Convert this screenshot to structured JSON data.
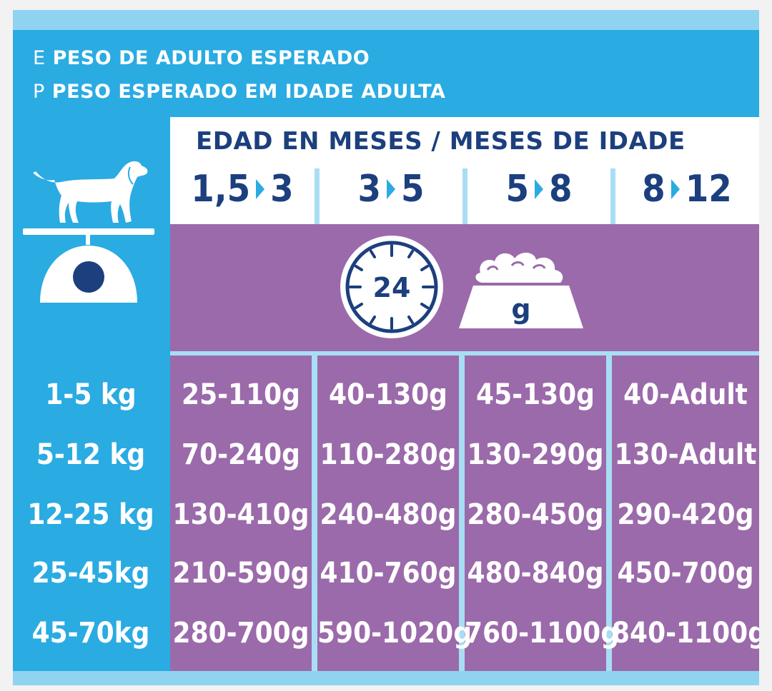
{
  "legend": {
    "e_key": "E",
    "e_text": "PESO DE ADULTO ESPERADO",
    "p_key": "P",
    "p_text": "PESO ESPERADO EM IDADE ADULTA"
  },
  "age_header": {
    "title": "EDAD EN MESES / MESES DE IDADE",
    "ranges": [
      {
        "from": "1,5",
        "to": "3"
      },
      {
        "from": "3",
        "to": "5"
      },
      {
        "from": "5",
        "to": "8"
      },
      {
        "from": "8",
        "to": "12"
      }
    ]
  },
  "icons": {
    "clock_label": "24",
    "bowl_label": "g",
    "dog_icon": "dog-on-scale-icon"
  },
  "colors": {
    "blue": "#2aabe2",
    "light_blue": "#a8def4",
    "purple": "#9b6aaa",
    "navy": "#1c3f7e"
  },
  "rows": [
    {
      "weight": "1-5 kg",
      "values": [
        "25-110g",
        "40-130g",
        "45-130g",
        "40-Adult"
      ]
    },
    {
      "weight": "5-12 kg",
      "values": [
        "70-240g",
        "110-280g",
        "130-290g",
        "130-Adult"
      ]
    },
    {
      "weight": "12-25 kg",
      "values": [
        "130-410g",
        "240-480g",
        "280-450g",
        "290-420g"
      ]
    },
    {
      "weight": "25-45kg",
      "values": [
        "210-590g",
        "410-760g",
        "480-840g",
        "450-700g"
      ]
    },
    {
      "weight": "45-70kg",
      "values": [
        "280-700g",
        "590-1020g",
        "760-1100g",
        "840-1100g"
      ]
    }
  ]
}
